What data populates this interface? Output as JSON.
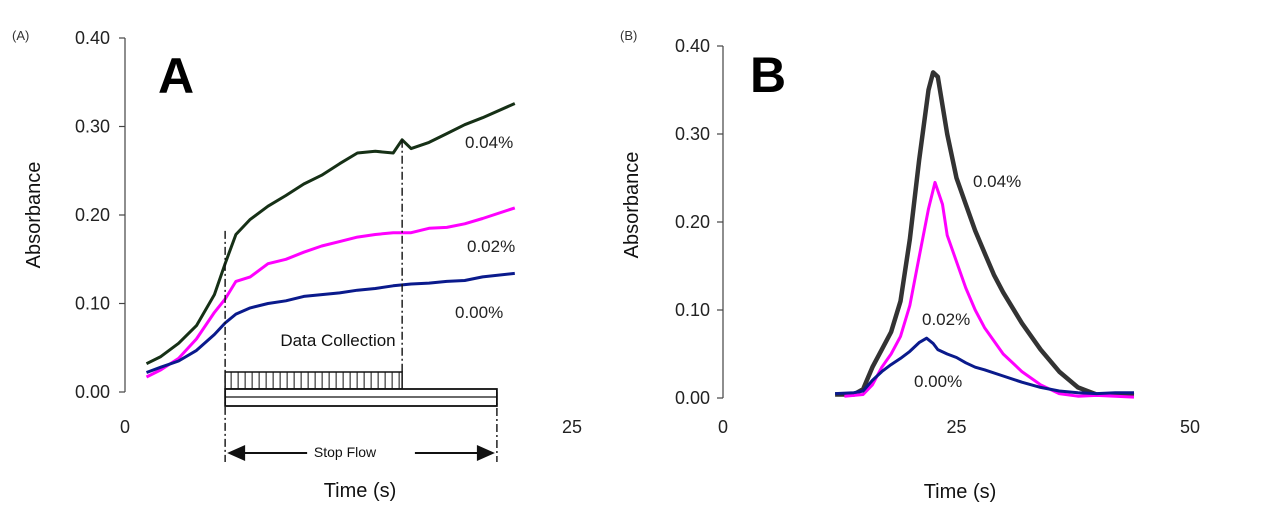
{
  "chart_data": [
    {
      "type": "line",
      "panel_tag": "(A)",
      "panel_letter": "A",
      "xlabel": "Time (s)",
      "ylabel": "Absorbance",
      "xlim": [
        0,
        25
      ],
      "ylim": [
        0,
        0.4
      ],
      "x_ticks": [
        "0",
        "25"
      ],
      "y_ticks": [
        "0.00",
        "0.10",
        "0.20",
        "0.30",
        "0.40"
      ],
      "annotations": {
        "data_collection": "Data Collection",
        "stop_flow": "Stop Flow"
      },
      "series": [
        {
          "name": "0.04%",
          "color": "#163016",
          "x": [
            1.2,
            2,
            3,
            4,
            5,
            5.6,
            6.2,
            7,
            8,
            9,
            10,
            11,
            12,
            13,
            14,
            15,
            15.5,
            16,
            17,
            18,
            19,
            20,
            21.8
          ],
          "y": [
            0.032,
            0.04,
            0.055,
            0.075,
            0.11,
            0.145,
            0.178,
            0.195,
            0.21,
            0.222,
            0.235,
            0.245,
            0.258,
            0.27,
            0.272,
            0.27,
            0.285,
            0.275,
            0.282,
            0.292,
            0.302,
            0.31,
            0.326
          ]
        },
        {
          "name": "0.02%",
          "color": "#ff00ff",
          "x": [
            1.2,
            2,
            3,
            4,
            5,
            5.6,
            6.2,
            7,
            8,
            9,
            10,
            11,
            12,
            13,
            14,
            15,
            16,
            17,
            18,
            19,
            20,
            21.8
          ],
          "y": [
            0.017,
            0.025,
            0.038,
            0.06,
            0.09,
            0.105,
            0.125,
            0.13,
            0.145,
            0.15,
            0.158,
            0.165,
            0.17,
            0.175,
            0.178,
            0.18,
            0.18,
            0.185,
            0.186,
            0.19,
            0.196,
            0.208
          ]
        },
        {
          "name": "0.00%",
          "color": "#0a1a8c",
          "x": [
            1.2,
            2,
            3,
            4,
            5,
            5.6,
            6.2,
            7,
            8,
            9,
            10,
            11,
            12,
            13,
            14,
            15,
            16,
            17,
            18,
            19,
            20,
            21.8
          ],
          "y": [
            0.022,
            0.028,
            0.035,
            0.047,
            0.065,
            0.078,
            0.088,
            0.095,
            0.1,
            0.103,
            0.108,
            0.11,
            0.112,
            0.115,
            0.117,
            0.12,
            0.122,
            0.123,
            0.125,
            0.126,
            0.13,
            0.134
          ]
        }
      ]
    },
    {
      "type": "line",
      "panel_tag": "(B)",
      "panel_letter": "B",
      "xlabel": "Time (s)",
      "ylabel": "Absorbance",
      "xlim": [
        0,
        50
      ],
      "ylim": [
        0,
        0.4
      ],
      "x_ticks": [
        "0",
        "25",
        "50"
      ],
      "y_ticks": [
        "0.00",
        "0.10",
        "0.20",
        "0.30",
        "0.40"
      ],
      "series": [
        {
          "name": "0.04%",
          "color": "#333333",
          "x": [
            12,
            14,
            15,
            16,
            17,
            18,
            19,
            20,
            21,
            22,
            22.5,
            23,
            24,
            25,
            26,
            27,
            28,
            29,
            30,
            32,
            34,
            36,
            38,
            39,
            40,
            42,
            44
          ],
          "y": [
            0.004,
            0.004,
            0.01,
            0.035,
            0.055,
            0.075,
            0.11,
            0.18,
            0.27,
            0.35,
            0.37,
            0.365,
            0.3,
            0.25,
            0.22,
            0.19,
            0.165,
            0.14,
            0.12,
            0.085,
            0.055,
            0.03,
            0.012,
            0.008,
            0.004,
            0.004,
            0.003
          ]
        },
        {
          "name": "0.02%",
          "color": "#ff00ff",
          "x": [
            13,
            15,
            16,
            17,
            18,
            19,
            20,
            21,
            22,
            22.7,
            23.5,
            24,
            25,
            26,
            27,
            28,
            30,
            32,
            34,
            36,
            38,
            40,
            42,
            44
          ],
          "y": [
            0.002,
            0.004,
            0.015,
            0.035,
            0.05,
            0.07,
            0.105,
            0.16,
            0.215,
            0.245,
            0.22,
            0.185,
            0.155,
            0.125,
            0.1,
            0.08,
            0.05,
            0.03,
            0.015,
            0.005,
            0.002,
            0.003,
            0.002,
            0.001
          ]
        },
        {
          "name": "0.00%",
          "color": "#0a1a8c",
          "x": [
            12,
            14,
            15,
            16,
            17,
            18,
            19,
            20,
            21,
            21.8,
            22.5,
            23,
            24,
            25,
            26,
            27,
            28,
            30,
            32,
            34,
            36,
            38,
            40,
            42,
            44
          ],
          "y": [
            0.005,
            0.006,
            0.008,
            0.02,
            0.03,
            0.038,
            0.045,
            0.053,
            0.063,
            0.068,
            0.062,
            0.055,
            0.05,
            0.046,
            0.04,
            0.035,
            0.032,
            0.025,
            0.018,
            0.012,
            0.008,
            0.006,
            0.005,
            0.006,
            0.006
          ]
        }
      ]
    }
  ]
}
